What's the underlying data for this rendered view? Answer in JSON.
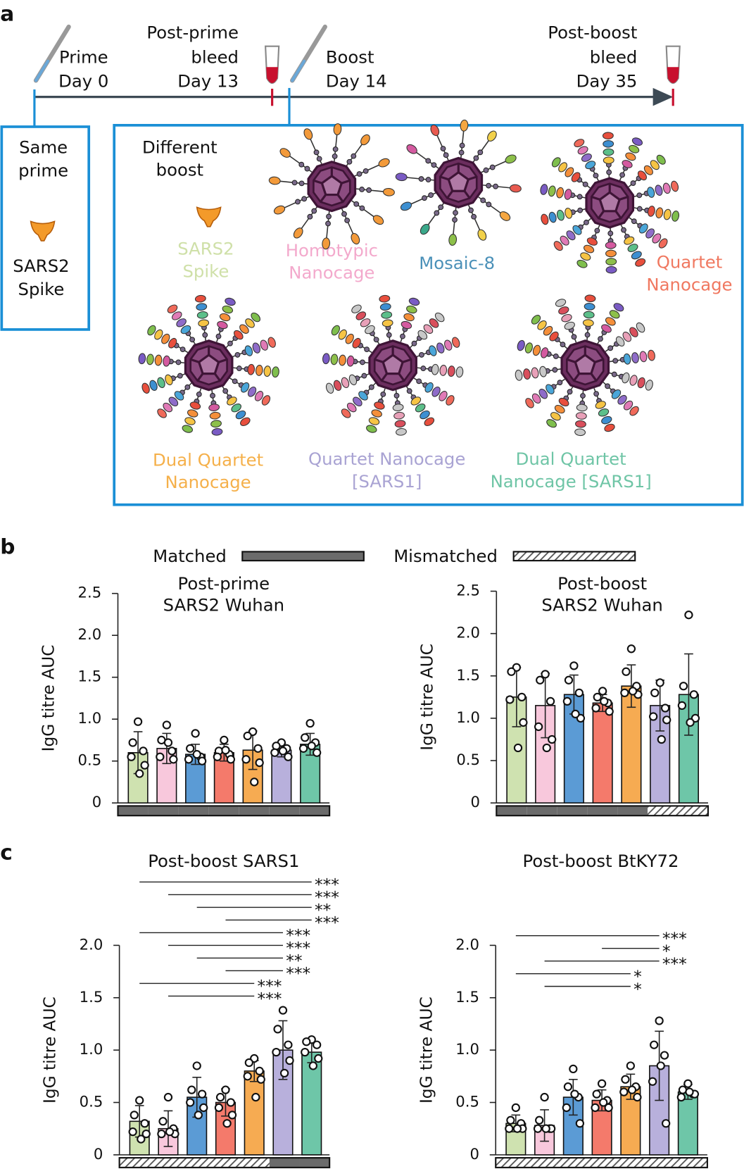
{
  "panel_labels": [
    "a",
    "b",
    "c"
  ],
  "timeline": [
    {
      "lines": [
        "Prime",
        "Day 0"
      ]
    },
    {
      "lines": [
        "Post-prime",
        "bleed",
        "Day 13"
      ]
    },
    {
      "lines": [
        "Boost",
        "Day 14"
      ]
    },
    {
      "lines": [
        "Post-boost",
        "bleed",
        "Day 35"
      ]
    }
  ],
  "prime_box": {
    "heading": [
      "Same",
      "prime"
    ],
    "antigen": [
      "SARS2",
      "Spike"
    ]
  },
  "boost_box": {
    "heading": [
      "Different",
      "boost"
    ],
    "immunogens": [
      {
        "lines": [
          "SARS2",
          "Spike"
        ],
        "color": "#cfe0a8"
      },
      {
        "lines": [
          "Homotypic",
          "Nanocage"
        ],
        "color": "#f3a9cc"
      },
      {
        "lines": [
          "Mosaic-8"
        ],
        "color": "#4a90b8"
      },
      {
        "lines": [
          "Quartet",
          "Nanocage"
        ],
        "color": "#f07860"
      },
      {
        "lines": [
          "Dual Quartet",
          "Nanocage"
        ],
        "color": "#f5b04a"
      },
      {
        "lines": [
          "Quartet Nanocage",
          "[SARS1]"
        ],
        "color": "#a9a3d3"
      },
      {
        "lines": [
          "Dual Quartet",
          "Nanocage [SARS1]"
        ],
        "color": "#6fc5a6"
      }
    ]
  },
  "legend": {
    "matched": "Matched",
    "mismatched": "Mismatched"
  },
  "chart_data": [
    {
      "type": "bar",
      "title_lines": [
        "Post-prime",
        "SARS2 Wuhan"
      ],
      "ylabel": "IgG titre AUC",
      "categories": [
        null,
        null,
        null,
        null,
        null,
        null,
        null
      ],
      "values": [
        0.6,
        0.65,
        0.58,
        0.6,
        0.63,
        0.63,
        0.7
      ],
      "errors": [
        0.25,
        0.18,
        0.12,
        0.1,
        0.23,
        0.08,
        0.13
      ],
      "points": [
        [
          0.97,
          0.72,
          0.62,
          0.55,
          0.45,
          0.35
        ],
        [
          0.93,
          0.75,
          0.62,
          0.55,
          0.52,
          0.72
        ],
        [
          0.83,
          0.65,
          0.55,
          0.52,
          0.5,
          0.58
        ],
        [
          0.75,
          0.62,
          0.58,
          0.55,
          0.52,
          0.63
        ],
        [
          0.85,
          0.8,
          0.65,
          0.52,
          0.48,
          0.25
        ],
        [
          0.72,
          0.68,
          0.65,
          0.6,
          0.55,
          0.62
        ],
        [
          0.95,
          0.78,
          0.72,
          0.65,
          0.6,
          0.68
        ]
      ],
      "colors": [
        "#cfe2b0",
        "#f8c8dc",
        "#5b9bd5",
        "#f47a6b",
        "#f6ab52",
        "#b8b0dc",
        "#6ec6a8"
      ],
      "mismatched": [
        false,
        false,
        false,
        false,
        false,
        false,
        false
      ],
      "ylim": [
        0,
        2.5
      ],
      "yticks": [
        0,
        0.5,
        {
          "value": 1,
          "label": "1.0"
        },
        1.5,
        {
          "value": 2,
          "label": "2.0"
        },
        2.5
      ],
      "brackets": []
    },
    {
      "type": "bar",
      "title_lines": [
        "Post-boost",
        "SARS2 Wuhan"
      ],
      "ylabel": "IgG titre AUC",
      "categories": [
        null,
        null,
        null,
        null,
        null,
        null,
        null
      ],
      "values": [
        1.25,
        1.15,
        1.28,
        1.18,
        1.38,
        1.15,
        1.28
      ],
      "errors": [
        0.35,
        0.38,
        0.23,
        0.1,
        0.25,
        0.3,
        0.48
      ],
      "points": [
        [
          1.6,
          1.55,
          1.25,
          1.22,
          0.95,
          0.65
        ],
        [
          1.52,
          1.45,
          1.2,
          0.9,
          0.75,
          0.65
        ],
        [
          1.62,
          1.45,
          1.3,
          1.2,
          1.0,
          1.05
        ],
        [
          1.32,
          1.25,
          1.18,
          1.12,
          1.08,
          1.2
        ],
        [
          1.82,
          1.55,
          1.38,
          1.3,
          1.28,
          1.32
        ],
        [
          1.42,
          1.3,
          1.12,
          1.02,
          0.98,
          0.75
        ],
        [
          2.22,
          1.38,
          1.28,
          1.15,
          1.0,
          0.95
        ]
      ],
      "colors": [
        "#cfe2b0",
        "#f8c8dc",
        "#5b9bd5",
        "#f47a6b",
        "#f6ab52",
        "#b8b0dc",
        "#6ec6a8"
      ],
      "mismatched": [
        false,
        false,
        false,
        false,
        false,
        true,
        true
      ],
      "ylim": [
        0,
        2.5
      ],
      "yticks": [
        0,
        0.5,
        {
          "value": 1,
          "label": "1.0"
        },
        1.5,
        {
          "value": 2,
          "label": "2.0"
        },
        2.5
      ],
      "brackets": []
    },
    {
      "type": "bar",
      "title_lines": [
        "Post-boost SARS1"
      ],
      "ylabel": "IgG titre AUC",
      "categories": [
        null,
        null,
        null,
        null,
        null,
        null,
        null
      ],
      "values": [
        0.32,
        0.25,
        0.55,
        0.5,
        0.8,
        1.0,
        0.98
      ],
      "errors": [
        0.15,
        0.17,
        0.19,
        0.13,
        0.1,
        0.28,
        0.1
      ],
      "points": [
        [
          0.52,
          0.38,
          0.3,
          0.22,
          0.2,
          0.15
        ],
        [
          0.55,
          0.32,
          0.25,
          0.2,
          0.2,
          0.22
        ],
        [
          0.85,
          0.62,
          0.58,
          0.5,
          0.45,
          0.38
        ],
        [
          0.62,
          0.55,
          0.5,
          0.45,
          0.38,
          0.3
        ],
        [
          0.92,
          0.88,
          0.8,
          0.75,
          0.72,
          0.55
        ],
        [
          1.38,
          1.2,
          1.05,
          0.98,
          0.9,
          0.78
        ],
        [
          1.1,
          1.08,
          1.05,
          0.98,
          0.92,
          0.85
        ]
      ],
      "colors": [
        "#cfe2b0",
        "#f8c8dc",
        "#5b9bd5",
        "#f47a6b",
        "#f6ab52",
        "#b8b0dc",
        "#6ec6a8"
      ],
      "mismatched": [
        true,
        true,
        true,
        true,
        true,
        false,
        false
      ],
      "ylim": [
        0,
        2
      ],
      "yticks": [
        0,
        0.5,
        {
          "value": 1,
          "label": "1.0"
        },
        1.5,
        {
          "value": 2,
          "label": "2.0"
        }
      ],
      "brackets": [
        {
          "from": 0,
          "to": 6,
          "label": "***"
        },
        {
          "from": 1,
          "to": 6,
          "label": "***"
        },
        {
          "from": 2,
          "to": 6,
          "label": "**"
        },
        {
          "from": 3,
          "to": 6,
          "label": "***"
        },
        {
          "from": 0,
          "to": 5,
          "label": "***"
        },
        {
          "from": 1,
          "to": 5,
          "label": "***"
        },
        {
          "from": 2,
          "to": 5,
          "label": "**"
        },
        {
          "from": 3,
          "to": 5,
          "label": "***"
        },
        {
          "from": 0,
          "to": 4,
          "label": "***"
        },
        {
          "from": 1,
          "to": 4,
          "label": "***"
        }
      ]
    },
    {
      "type": "bar",
      "title_lines": [
        "Post-boost BtKY72"
      ],
      "ylabel": "IgG titre AUC",
      "categories": [
        null,
        null,
        null,
        null,
        null,
        null,
        null
      ],
      "values": [
        0.3,
        0.28,
        0.55,
        0.52,
        0.65,
        0.85,
        0.6
      ],
      "errors": [
        0.08,
        0.15,
        0.17,
        0.1,
        0.12,
        0.33,
        0.07
      ],
      "points": [
        [
          0.45,
          0.33,
          0.3,
          0.25,
          0.25,
          0.25
        ],
        [
          0.55,
          0.33,
          0.25,
          0.25,
          0.25,
          0.25
        ],
        [
          0.82,
          0.65,
          0.55,
          0.45,
          0.3,
          0.58
        ],
        [
          0.68,
          0.58,
          0.52,
          0.45,
          0.45,
          0.5
        ],
        [
          0.85,
          0.72,
          0.65,
          0.6,
          0.55,
          0.62
        ],
        [
          1.28,
          1.05,
          0.95,
          0.7,
          0.3,
          0.85
        ],
        [
          0.68,
          0.62,
          0.58,
          0.55,
          0.58,
          0.6
        ]
      ],
      "colors": [
        "#cfe2b0",
        "#f8c8dc",
        "#5b9bd5",
        "#f47a6b",
        "#f6ab52",
        "#b8b0dc",
        "#6ec6a8"
      ],
      "mismatched": [
        true,
        true,
        true,
        true,
        true,
        true,
        true
      ],
      "ylim": [
        0,
        2
      ],
      "yticks": [
        0,
        0.5,
        {
          "value": 1,
          "label": "1.0"
        },
        1.5,
        {
          "value": 2,
          "label": "2.0"
        }
      ],
      "brackets": [
        {
          "from": 0,
          "to": 5,
          "label": "***"
        },
        {
          "from": 3,
          "to": 5,
          "label": "*"
        },
        {
          "from": 1,
          "to": 5,
          "label": "***"
        },
        {
          "from": 0,
          "to": 4,
          "label": "*"
        },
        {
          "from": 1,
          "to": 4,
          "label": "*"
        }
      ]
    }
  ]
}
